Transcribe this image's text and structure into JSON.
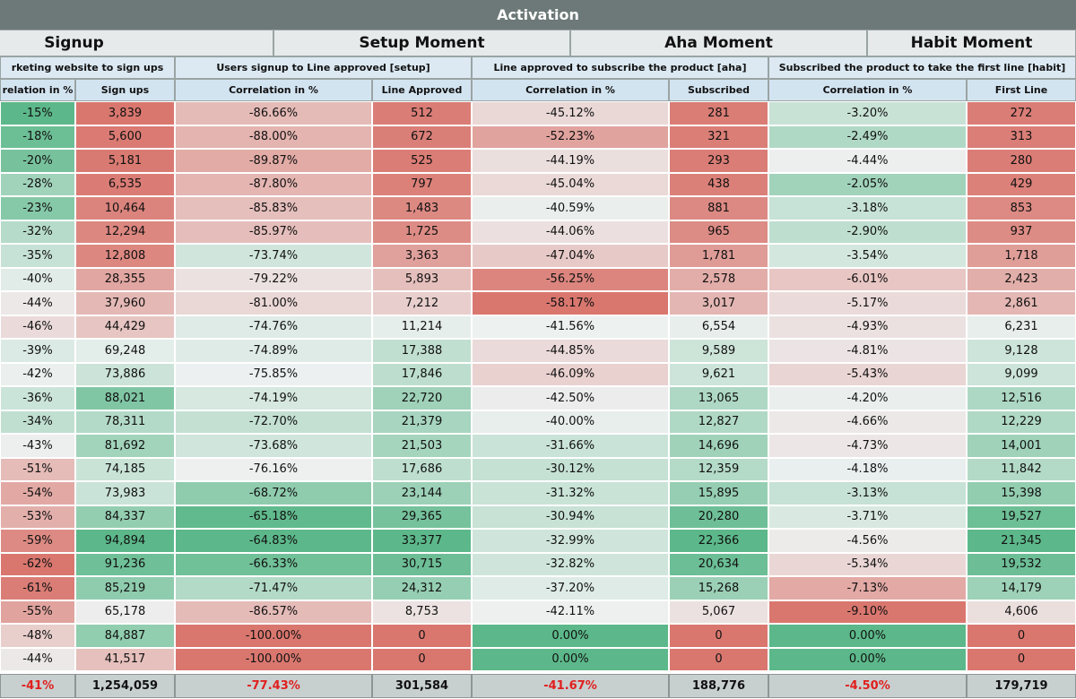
{
  "title": "Activation",
  "sections": [
    "Signup",
    "Setup Moment",
    "Aha Moment",
    "Habit Moment"
  ],
  "subheaders": [
    "rketing website to sign ups",
    "Users signup to Line approved [setup]",
    "Line approved to subscribe the product [aha]",
    "Subscribed the product to take the first line [habit]"
  ],
  "columns": [
    "relation in %",
    "Sign ups",
    "Correlation in %",
    "Line Approved",
    "Correlation in %",
    "Subscribed",
    "Correlation in %",
    "First Line"
  ],
  "rows": [
    [
      "-15%",
      "3,839",
      "-86.66%",
      "512",
      "-45.12%",
      "281",
      "-3.20%",
      "272"
    ],
    [
      "-18%",
      "5,600",
      "-88.00%",
      "672",
      "-52.23%",
      "321",
      "-2.49%",
      "313"
    ],
    [
      "-20%",
      "5,181",
      "-89.87%",
      "525",
      "-44.19%",
      "293",
      "-4.44%",
      "280"
    ],
    [
      "-28%",
      "6,535",
      "-87.80%",
      "797",
      "-45.04%",
      "438",
      "-2.05%",
      "429"
    ],
    [
      "-23%",
      "10,464",
      "-85.83%",
      "1,483",
      "-40.59%",
      "881",
      "-3.18%",
      "853"
    ],
    [
      "-32%",
      "12,294",
      "-85.97%",
      "1,725",
      "-44.06%",
      "965",
      "-2.90%",
      "937"
    ],
    [
      "-35%",
      "12,808",
      "-73.74%",
      "3,363",
      "-47.04%",
      "1,781",
      "-3.54%",
      "1,718"
    ],
    [
      "-40%",
      "28,355",
      "-79.22%",
      "5,893",
      "-56.25%",
      "2,578",
      "-6.01%",
      "2,423"
    ],
    [
      "-44%",
      "37,960",
      "-81.00%",
      "7,212",
      "-58.17%",
      "3,017",
      "-5.17%",
      "2,861"
    ],
    [
      "-46%",
      "44,429",
      "-74.76%",
      "11,214",
      "-41.56%",
      "6,554",
      "-4.93%",
      "6,231"
    ],
    [
      "-39%",
      "69,248",
      "-74.89%",
      "17,388",
      "-44.85%",
      "9,589",
      "-4.81%",
      "9,128"
    ],
    [
      "-42%",
      "73,886",
      "-75.85%",
      "17,846",
      "-46.09%",
      "9,621",
      "-5.43%",
      "9,099"
    ],
    [
      "-36%",
      "88,021",
      "-74.19%",
      "22,720",
      "-42.50%",
      "13,065",
      "-4.20%",
      "12,516"
    ],
    [
      "-34%",
      "78,311",
      "-72.70%",
      "21,379",
      "-40.00%",
      "12,827",
      "-4.66%",
      "12,229"
    ],
    [
      "-43%",
      "81,692",
      "-73.68%",
      "21,503",
      "-31.66%",
      "14,696",
      "-4.73%",
      "14,001"
    ],
    [
      "-51%",
      "74,185",
      "-76.16%",
      "17,686",
      "-30.12%",
      "12,359",
      "-4.18%",
      "11,842"
    ],
    [
      "-54%",
      "73,983",
      "-68.72%",
      "23,144",
      "-31.32%",
      "15,895",
      "-3.13%",
      "15,398"
    ],
    [
      "-53%",
      "84,337",
      "-65.18%",
      "29,365",
      "-30.94%",
      "20,280",
      "-3.71%",
      "19,527"
    ],
    [
      "-59%",
      "94,894",
      "-64.83%",
      "33,377",
      "-32.99%",
      "22,366",
      "-4.56%",
      "21,345"
    ],
    [
      "-62%",
      "91,236",
      "-66.33%",
      "30,715",
      "-32.82%",
      "20,634",
      "-5.34%",
      "19,532"
    ],
    [
      "-61%",
      "85,219",
      "-71.47%",
      "24,312",
      "-37.20%",
      "15,268",
      "-7.13%",
      "14,179"
    ],
    [
      "-55%",
      "65,178",
      "-86.57%",
      "8,753",
      "-42.11%",
      "5,067",
      "-9.10%",
      "4,606"
    ],
    [
      "-48%",
      "84,887",
      "-100.00%",
      "0",
      "0.00%",
      "0",
      "0.00%",
      "0"
    ],
    [
      "-44%",
      "41,517",
      "-100.00%",
      "0",
      "0.00%",
      "0",
      "0.00%",
      "0"
    ]
  ],
  "totals": [
    "-41%",
    "1,254,059",
    "-77.43%",
    "301,584",
    "-41.67%",
    "188,776",
    "-4.50%",
    "179,719"
  ],
  "color_scale": {
    "low": "#d9776f",
    "mid": "#eef1f1",
    "high": "#5cb88a"
  }
}
